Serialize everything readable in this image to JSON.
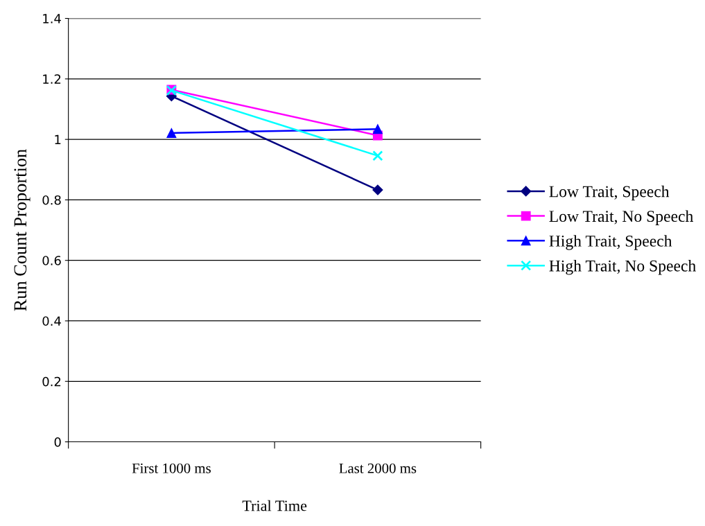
{
  "chart_data": {
    "type": "line",
    "xlabel": "Trial Time",
    "ylabel": "Run Count Proportion",
    "categories": [
      "First 1000 ms",
      "Last 2000 ms"
    ],
    "series": [
      {
        "name": "Low Trait, Speech",
        "color": "#000080",
        "marker": "diamond",
        "values": [
          1.143,
          0.833
        ]
      },
      {
        "name": "Low Trait, No Speech",
        "color": "#ff00ff",
        "marker": "square",
        "values": [
          1.164,
          1.013
        ]
      },
      {
        "name": "High Trait, Speech",
        "color": "#0000ff",
        "marker": "triangle",
        "values": [
          1.021,
          1.034
        ]
      },
      {
        "name": "High Trait, No Speech",
        "color": "#00ffff",
        "marker": "cross",
        "values": [
          1.162,
          0.946
        ]
      }
    ],
    "ylim": [
      0,
      1.4
    ],
    "yticks": [
      0,
      0.2,
      0.4,
      0.6,
      0.8,
      1,
      1.2,
      1.4
    ],
    "grid": "y",
    "legend": "right",
    "line_style": "solid"
  }
}
